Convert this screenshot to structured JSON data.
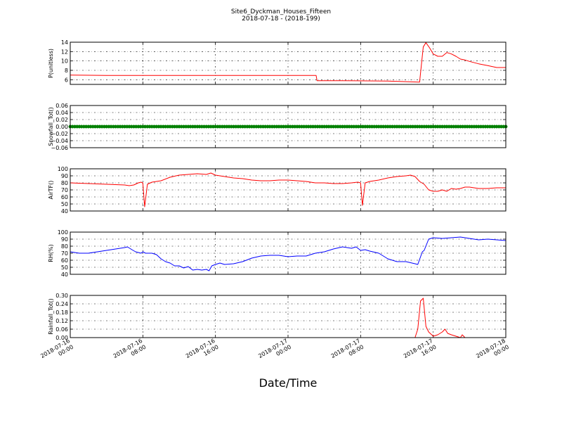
{
  "chart_data": {
    "type": "line",
    "title": "Site6_Dyckman_Houses_Fifteen",
    "subtitle": "2018-07-18 - (2018-199)",
    "xlabel": "Date/Time",
    "x_ticks": [
      [
        "2018-07-16",
        "00:00"
      ],
      [
        "2018-07-16",
        "08:00"
      ],
      [
        "2018-07-16",
        "16:00"
      ],
      [
        "2018-07-17",
        "00:00"
      ],
      [
        "2018-07-17",
        "08:00"
      ],
      [
        "2018-07-17",
        "16:00"
      ],
      [
        "2018-07-18",
        "00:00"
      ]
    ],
    "xlim_hours": [
      0,
      48
    ],
    "grid": true,
    "panels": [
      {
        "ylabel": "P(unitless)",
        "ylim": [
          5,
          14
        ],
        "yticks": [
          "6",
          "8",
          "10",
          "12",
          "14"
        ],
        "ytick_values": [
          6,
          8,
          10,
          12,
          14
        ],
        "color": "#ff0000",
        "style": "line",
        "series": {
          "name": "P",
          "x": [
            0,
            4,
            8,
            12,
            16,
            20,
            24,
            27.1,
            27.2,
            30,
            35,
            38.5,
            38.9,
            39.2,
            39.6,
            40,
            40.5,
            41,
            41.5,
            42,
            42.5,
            43,
            43.5,
            44,
            45,
            46,
            47,
            48
          ],
          "y": [
            7.0,
            6.9,
            6.9,
            6.9,
            6.9,
            6.9,
            6.9,
            6.9,
            5.8,
            5.8,
            5.7,
            5.5,
            13.0,
            13.9,
            12.8,
            11.5,
            11.0,
            11.0,
            11.8,
            11.5,
            11.0,
            10.4,
            10.2,
            9.9,
            9.4,
            9.0,
            8.6,
            8.6
          ]
        }
      },
      {
        "ylabel": "Snowfall_Tot()",
        "ylim": [
          -0.06,
          0.06
        ],
        "yticks": [
          "−0.06",
          "−0.04",
          "−0.02",
          "0.00",
          "0.02",
          "0.04",
          "0.06"
        ],
        "ytick_values": [
          -0.06,
          -0.04,
          -0.02,
          0,
          0.02,
          0.04,
          0.06
        ],
        "color": "#008000",
        "style": "markers",
        "series": {
          "name": "Snowfall_Tot",
          "x": [
            0,
            48
          ],
          "y": [
            0.0,
            0.0
          ],
          "note_interval_hours": 0.25
        }
      },
      {
        "ylabel": "AirTF()",
        "ylim": [
          40,
          100
        ],
        "yticks": [
          "40",
          "50",
          "60",
          "70",
          "80",
          "90",
          "100"
        ],
        "ytick_values": [
          40,
          50,
          60,
          70,
          80,
          90,
          100
        ],
        "color": "#ff0000",
        "style": "line",
        "series": {
          "name": "AirTF",
          "x": [
            0,
            2,
            4,
            6,
            6.5,
            7,
            7.5,
            7.8,
            8.0,
            8.2,
            8.5,
            9,
            10,
            11,
            12,
            13,
            14,
            15,
            15.5,
            16,
            16.5,
            17,
            18,
            19,
            20,
            21,
            22,
            23,
            24,
            25,
            26,
            27,
            28,
            29,
            30,
            31,
            31.7,
            32,
            32.2,
            32.5,
            33,
            34,
            35,
            36,
            37,
            37.5,
            38,
            38.5,
            39,
            39.5,
            40,
            40.5,
            41,
            41.5,
            42,
            42.5,
            43,
            43.5,
            44,
            45,
            46,
            47,
            48
          ],
          "y": [
            80,
            79,
            78,
            77,
            76,
            77,
            80,
            81,
            80,
            46,
            78,
            81,
            83,
            88,
            91,
            92,
            93,
            92,
            94,
            91,
            90,
            89,
            87,
            86,
            84,
            83,
            83,
            84,
            84,
            83,
            82,
            80,
            80,
            79,
            79,
            80,
            81,
            80,
            48,
            80,
            82,
            84,
            87,
            89,
            90,
            91,
            89,
            82,
            78,
            70,
            68,
            68,
            70,
            68,
            72,
            71,
            72,
            74,
            74,
            72,
            72,
            73,
            73
          ]
        }
      },
      {
        "ylabel": "RH(%)",
        "ylim": [
          40,
          100
        ],
        "yticks": [
          "40",
          "50",
          "60",
          "70",
          "80",
          "90",
          "100"
        ],
        "ytick_values": [
          40,
          50,
          60,
          70,
          80,
          90,
          100
        ],
        "color": "#0000ff",
        "style": "line",
        "series": {
          "name": "RH",
          "x": [
            0,
            1,
            2,
            3,
            4,
            5,
            6,
            6.3,
            6.8,
            7.2,
            7.8,
            8.0,
            8.3,
            9,
            9.5,
            10,
            10.5,
            11,
            11.5,
            12,
            12.5,
            13,
            13.5,
            14,
            14.5,
            15,
            15.3,
            15.6,
            16,
            16.5,
            17,
            18,
            19,
            20,
            21,
            22,
            23,
            24,
            25,
            26,
            27,
            28,
            29,
            30,
            31,
            31.5,
            32,
            32.5,
            33,
            34,
            35,
            36,
            37,
            38,
            38.3,
            38.8,
            39,
            39.5,
            40,
            41,
            42,
            43,
            44,
            45,
            46,
            47,
            48
          ],
          "y": [
            72,
            70,
            70,
            72,
            74,
            76,
            78,
            79,
            75,
            72,
            70,
            72,
            70,
            70,
            68,
            62,
            58,
            56,
            52,
            52,
            49,
            51,
            46,
            47,
            46,
            47,
            45,
            52,
            54,
            56,
            54,
            55,
            58,
            63,
            66,
            67,
            67,
            65,
            66,
            66,
            70,
            72,
            76,
            79,
            77,
            79,
            74,
            75,
            73,
            70,
            62,
            58,
            58,
            55,
            54,
            72,
            74,
            90,
            92,
            91,
            92,
            93,
            91,
            89,
            90,
            89,
            88
          ]
        }
      },
      {
        "ylabel": "Rainfall_Tot()",
        "ylim": [
          0,
          0.3
        ],
        "yticks": [
          "0.00",
          "0.06",
          "0.12",
          "0.18",
          "0.24",
          "0.30"
        ],
        "ytick_values": [
          0,
          0.06,
          0.12,
          0.18,
          0.24,
          0.3
        ],
        "color": "#ff0000",
        "style": "line",
        "series": {
          "name": "Rainfall_Tot",
          "x": [
            0,
            38,
            38.3,
            38.6,
            38.9,
            39.2,
            39.5,
            40,
            40.5,
            41,
            41.3,
            41.6,
            42,
            42.5,
            43,
            43.2,
            43.5,
            44,
            45,
            48
          ],
          "y": [
            0,
            0,
            0.06,
            0.26,
            0.28,
            0.08,
            0.04,
            0.01,
            0.02,
            0.04,
            0.06,
            0.03,
            0.02,
            0.01,
            0.0,
            0.02,
            0.0,
            0.0,
            0.0,
            0.0
          ]
        }
      }
    ]
  }
}
